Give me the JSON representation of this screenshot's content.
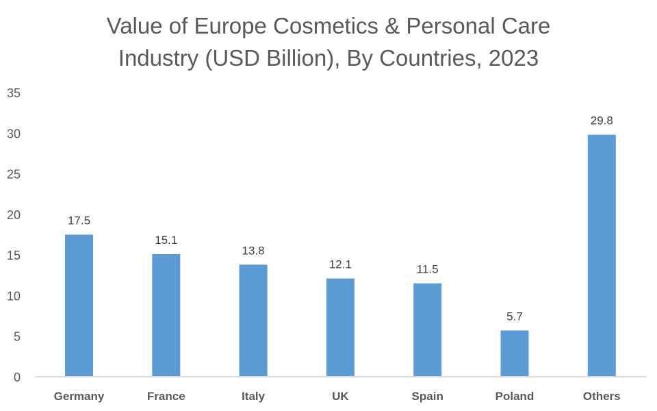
{
  "chart_data": {
    "type": "bar",
    "title_lines": [
      "Value of Europe Cosmetics & Personal Care",
      "Industry (USD Billion), By Countries, 2023"
    ],
    "categories": [
      "Germany",
      "France",
      "Italy",
      "UK",
      "Spain",
      "Poland",
      "Others"
    ],
    "values": [
      17.5,
      15.1,
      13.8,
      12.1,
      11.5,
      5.7,
      29.8
    ],
    "data_labels": [
      "17.5",
      "15.1",
      "13.8",
      "12.1",
      "11.5",
      "5.7",
      "29.8"
    ],
    "yticks": [
      "0",
      "5",
      "10",
      "15",
      "20",
      "25",
      "30",
      "35"
    ],
    "ylim": [
      0,
      35
    ],
    "xlabel": "",
    "ylabel": "",
    "grid": false,
    "legend": "none",
    "bar_color": "#5b9bd5",
    "axis_color": "#d9d9d9"
  }
}
